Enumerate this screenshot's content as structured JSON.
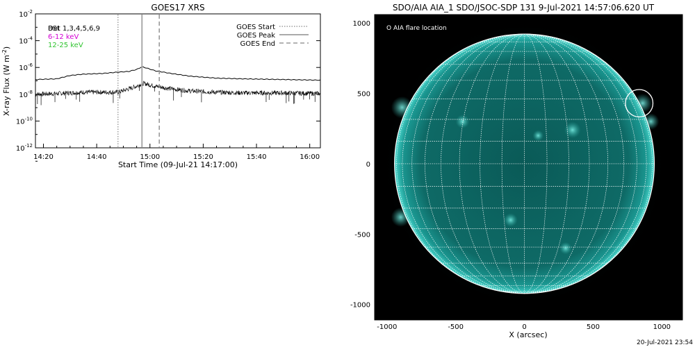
{
  "footer": {
    "timestamp": "20-Jul-2021 23:54"
  },
  "colors": {
    "disk": "#0e6e6a",
    "limb": "#39c6bc",
    "grid": "#ffffff",
    "flare_circle": "#ffffff",
    "band1": "#000000",
    "band2": "#d400d4",
    "band3": "#2fc42f"
  },
  "chart_data": [
    {
      "type": "line",
      "title": "GOES17 XRS",
      "xlabel": "Start Time (09-Jul-21 14:17:00)",
      "ylabel": "X-ray Flux (W m",
      "ylabel_sup": "-2",
      "ylabel_close": ")",
      "yscale": "log",
      "x_range_minutes_after_1400": [
        17,
        124
      ],
      "ylim_exponent": [
        -12,
        -2
      ],
      "x_ticks": [
        {
          "label": "14:20",
          "minute": 20
        },
        {
          "label": "14:40",
          "minute": 40
        },
        {
          "label": "15:00",
          "minute": 60
        },
        {
          "label": "15:20",
          "minute": 80
        },
        {
          "label": "15:40",
          "minute": 100
        },
        {
          "label": "16:00",
          "minute": 120
        }
      ],
      "y_ticks": [
        {
          "base": "10",
          "exp": "-2",
          "value": -2
        },
        {
          "base": "10",
          "exp": "-4",
          "value": -4
        },
        {
          "base": "10",
          "exp": "-6",
          "value": -6
        },
        {
          "base": "10",
          "exp": "-8",
          "value": -8
        },
        {
          "base": "10",
          "exp": "-10",
          "value": -10
        },
        {
          "base": "10",
          "exp": "-12",
          "value": -12
        }
      ],
      "legend_top_left": [
        {
          "text": "Det 1,3,4,5,6,9",
          "overprint": "BSt",
          "color": "#000000"
        },
        {
          "text": "6-12 keV",
          "color": "#d400d4"
        },
        {
          "text": "12-25 keV",
          "color": "#2fc42f"
        }
      ],
      "legend_top_right": [
        {
          "label": "GOES Start",
          "style": "dotted"
        },
        {
          "label": "GOES Peak",
          "style": "solid"
        },
        {
          "label": "GOES End",
          "style": "dashed"
        }
      ],
      "event_lines": [
        {
          "name": "goes-start",
          "minute": 48,
          "style": "dotted"
        },
        {
          "name": "goes-peak",
          "minute": 57,
          "style": "solid"
        },
        {
          "name": "goes-end",
          "minute": 63.5,
          "style": "dashed"
        }
      ],
      "series": [
        {
          "name": "",
          "points": [
            [
              17,
              -6.9
            ],
            [
              25,
              -6.85
            ],
            [
              30,
              -6.6
            ],
            [
              35,
              -6.5
            ],
            [
              42,
              -6.45
            ],
            [
              48,
              -6.35
            ],
            [
              52,
              -6.3
            ],
            [
              55,
              -6.15
            ],
            [
              57,
              -5.95
            ],
            [
              58,
              -6.0
            ],
            [
              62,
              -6.25
            ],
            [
              68,
              -6.45
            ],
            [
              75,
              -6.65
            ],
            [
              85,
              -6.8
            ],
            [
              95,
              -6.85
            ],
            [
              110,
              -6.9
            ],
            [
              124,
              -6.95
            ]
          ]
        },
        {
          "name": "",
          "points": [
            [
              17,
              -8.0
            ],
            [
              25,
              -7.95
            ],
            [
              30,
              -7.9
            ],
            [
              35,
              -7.85
            ],
            [
              42,
              -7.85
            ],
            [
              48,
              -7.85
            ],
            [
              52,
              -7.6
            ],
            [
              55,
              -7.4
            ],
            [
              57,
              -7.2
            ],
            [
              58,
              -7.2
            ],
            [
              62,
              -7.4
            ],
            [
              68,
              -7.6
            ],
            [
              75,
              -7.75
            ],
            [
              85,
              -7.85
            ],
            [
              95,
              -7.9
            ],
            [
              110,
              -7.9
            ],
            [
              124,
              -7.95
            ]
          ],
          "scatter_band": 0.35
        }
      ]
    },
    {
      "type": "heatmap",
      "title": "SDO/AIA AIA_1 SDO/JSOC-SDP 131  9-Jul-2021 14:57:06.620 UT",
      "xlabel": "X (arcsec)",
      "ylabel": "",
      "xlim": [
        -1090,
        1150
      ],
      "ylim": [
        -1110,
        1060
      ],
      "x_ticks": [
        -1000,
        -500,
        0,
        500,
        1000
      ],
      "y_ticks": [
        -1000,
        -500,
        0,
        500,
        1000
      ],
      "solar_radius_arcsec": 945,
      "grid_spacing_deg": 10,
      "legend": "O AIA flare location",
      "flare_location_arcsec": [
        835,
        430
      ],
      "flare_circle_radius_arcsec": 100,
      "bright_regions_arcsec": [
        [
          860,
          430,
          70
        ],
        [
          920,
          300,
          60
        ],
        [
          -890,
          400,
          80
        ],
        [
          -900,
          -380,
          70
        ],
        [
          350,
          240,
          60
        ],
        [
          -450,
          300,
          50
        ],
        [
          100,
          200,
          40
        ],
        [
          -100,
          -400,
          50
        ],
        [
          300,
          -600,
          45
        ]
      ]
    }
  ]
}
